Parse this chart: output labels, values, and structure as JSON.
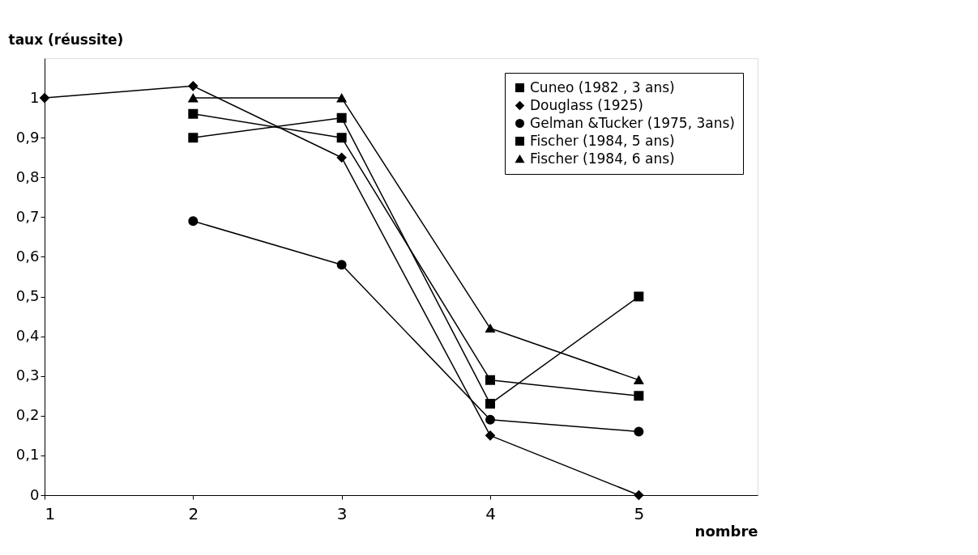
{
  "chart_data": {
    "type": "line",
    "xlabel": "nombre",
    "ylabel": "taux (réussite)",
    "xlim": [
      1,
      5.8
    ],
    "xticks": [
      1,
      2,
      3,
      4,
      5
    ],
    "ylim": [
      0,
      1.1
    ],
    "yticks": [
      0,
      {
        "value": 0.1,
        "label": "0,1"
      },
      {
        "value": 0.2,
        "label": "0,2"
      },
      {
        "value": 0.3,
        "label": "0,3"
      },
      {
        "value": 0.4,
        "label": "0,4"
      },
      {
        "value": 0.5,
        "label": "0,5"
      },
      {
        "value": 0.6,
        "label": "0,6"
      },
      {
        "value": 0.7,
        "label": "0,7"
      },
      {
        "value": 0.8,
        "label": "0,8"
      },
      {
        "value": 0.9,
        "label": "0,9"
      },
      1
    ],
    "grid": false,
    "legend": "top right",
    "series": [
      {
        "name": "Cuneo (1982 , 3 ans)",
        "color": "#000000",
        "marker": "square",
        "x": [
          2,
          3,
          4,
          5
        ],
        "values": [
          0.9,
          0.95,
          0.23,
          0.5
        ]
      },
      {
        "name": "Douglass (1925)",
        "color": "#000000",
        "marker": "diamond",
        "x": [
          1,
          2,
          3,
          4,
          5
        ],
        "values": [
          1,
          1.03,
          0.85,
          0.15,
          0
        ]
      },
      {
        "name": "Gelman &Tucker (1975, 3ans)",
        "color": "#000000",
        "marker": "circle",
        "x": [
          2,
          3,
          4,
          5
        ],
        "values": [
          0.69,
          0.58,
          0.19,
          0.16
        ]
      },
      {
        "name": "Fischer (1984, 5 ans)",
        "color": "#000000",
        "marker": "square",
        "x": [
          2,
          3,
          4,
          5
        ],
        "values": [
          0.96,
          0.9,
          0.29,
          0.25
        ]
      },
      {
        "name": "Fischer (1984, 6 ans)",
        "color": "#000000",
        "marker": "triangle",
        "x": [
          2,
          3,
          4,
          5
        ],
        "values": [
          1,
          1,
          0.42,
          0.29
        ]
      }
    ]
  }
}
